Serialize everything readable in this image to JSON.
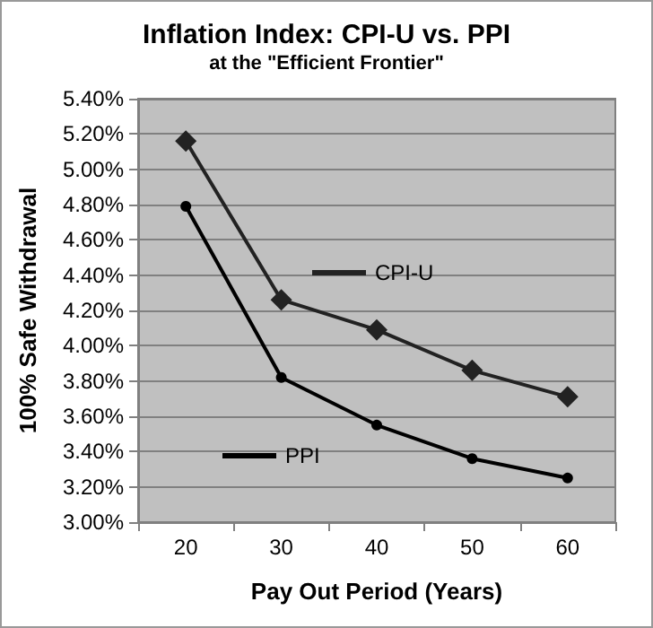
{
  "chart_data": {
    "type": "line",
    "title": "Inflation Index: CPI-U vs. PPI",
    "subtitle": "at the \"Efficient Frontier\"",
    "xlabel": "Pay Out Period (Years)",
    "ylabel": "100% Safe Withdrawal",
    "categories": [
      "20",
      "30",
      "40",
      "50",
      "60"
    ],
    "series": [
      {
        "name": "CPI-U",
        "color": "#222222",
        "marker": "diamond",
        "values": [
          5.16,
          4.26,
          4.09,
          3.86,
          3.71
        ]
      },
      {
        "name": "PPI",
        "color": "#000000",
        "marker": "circle",
        "values": [
          4.79,
          3.82,
          3.55,
          3.36,
          3.25
        ]
      }
    ],
    "ylim": [
      3.0,
      5.4
    ],
    "yticks": [
      {
        "value": 3.0,
        "label": "3.00%"
      },
      {
        "value": 3.2,
        "label": "3.20%"
      },
      {
        "value": 3.4,
        "label": "3.40%"
      },
      {
        "value": 3.6,
        "label": "3.60%"
      },
      {
        "value": 3.8,
        "label": "3.80%"
      },
      {
        "value": 4.0,
        "label": "4.00%"
      },
      {
        "value": 4.2,
        "label": "4.20%"
      },
      {
        "value": 4.4,
        "label": "4.40%"
      },
      {
        "value": 4.6,
        "label": "4.60%"
      },
      {
        "value": 4.8,
        "label": "4.80%"
      },
      {
        "value": 5.0,
        "label": "5.00%"
      },
      {
        "value": 5.2,
        "label": "5.20%"
      },
      {
        "value": 5.4,
        "label": "5.40%"
      }
    ],
    "grid": "y",
    "legend": "center",
    "line_style": "solid"
  }
}
